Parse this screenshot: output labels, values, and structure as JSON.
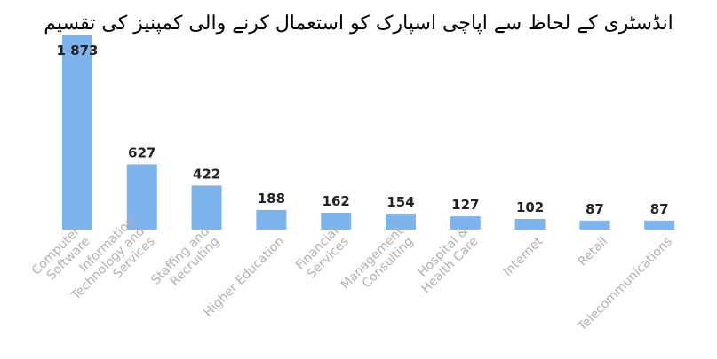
{
  "chart_data": {
    "type": "bar",
    "title": "انڈسٹری کے لحاظ سے اپاچی اسپارک کو استعمال کرنے والی کمپنیز کی تقسیم",
    "xlabel": "",
    "ylabel": "",
    "categories": [
      "Computer\nSoftware",
      "Information\nTechnology and\nServices",
      "Staffing and\nRecruiting",
      "Higher Education",
      "Financial\nServices",
      "Management\nConsulting",
      "Hospital &\nHealth Care",
      "Internet",
      "Retail",
      "Telecommunications"
    ],
    "values": [
      1873,
      627,
      422,
      188,
      162,
      154,
      127,
      102,
      87,
      87
    ],
    "value_labels": [
      "1 873",
      "627",
      "422",
      "188",
      "162",
      "154",
      "127",
      "102",
      "87",
      "87"
    ],
    "ylim": [
      0,
      1873
    ],
    "grid": false,
    "legend": "none",
    "bar_color": "#7eb3ec"
  }
}
